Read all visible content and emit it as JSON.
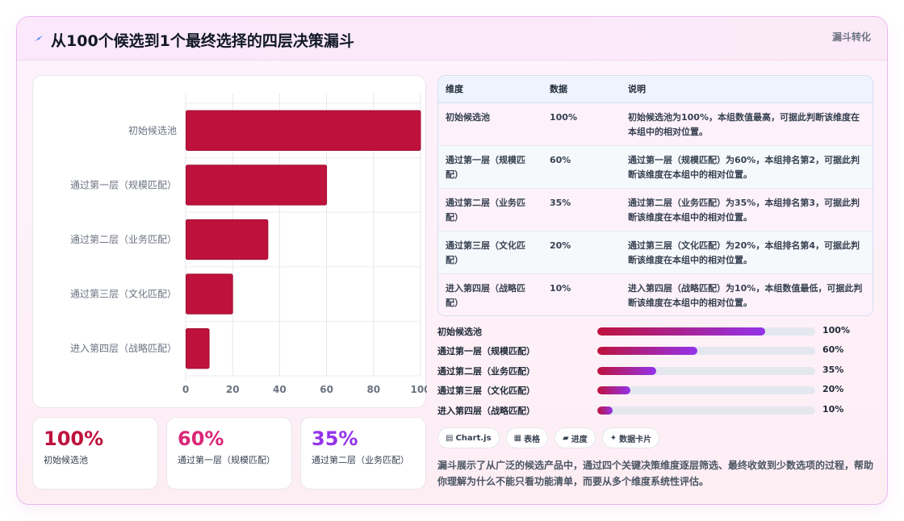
{
  "header": {
    "title": "从100个候选到1个最终选择的四层决策漏斗",
    "tag": "漏斗转化",
    "icon": "lightning-icon"
  },
  "colors": {
    "bar": "#be123c",
    "accent_start": "#be123c",
    "accent_end": "#9333ea"
  },
  "chart_data": {
    "type": "bar",
    "orientation": "horizontal",
    "categories": [
      "初始候选池",
      "通过第一层（规模匹配）",
      "通过第二层（业务匹配）",
      "通过第三层（文化匹配）",
      "进入第四层（战略匹配）"
    ],
    "values": [
      100,
      60,
      35,
      20,
      10
    ],
    "xlim": [
      0,
      100
    ],
    "xticks": [
      "0",
      "20",
      "40",
      "60",
      "80",
      "100"
    ],
    "grid": true,
    "legend": "none"
  },
  "stats": [
    {
      "value": "100%",
      "label": "初始候选池",
      "color": "#be123c"
    },
    {
      "value": "60%",
      "label": "通过第一层（规模匹配）",
      "color": "#db2777"
    },
    {
      "value": "35%",
      "label": "通过第二层（业务匹配）",
      "color": "#9333ea"
    }
  ],
  "table": {
    "headers": [
      "维度",
      "数据",
      "说明"
    ],
    "rows": [
      {
        "dim": "初始候选池",
        "val": "100%",
        "note": "初始候选池为100%，本组数值最高，可据此判断该维度在本组中的相对位置。"
      },
      {
        "dim": "通过第一层（规模匹配）",
        "val": "60%",
        "note": "通过第一层（规模匹配）为60%，本组排名第2，可据此判断该维度在本组中的相对位置。"
      },
      {
        "dim": "通过第二层（业务匹配）",
        "val": "35%",
        "note": "通过第二层（业务匹配）为35%，本组排名第3，可据此判断该维度在本组中的相对位置。"
      },
      {
        "dim": "通过第三层（文化匹配）",
        "val": "20%",
        "note": "通过第三层（文化匹配）为20%，本组排名第4，可据此判断该维度在本组中的相对位置。"
      },
      {
        "dim": "进入第四层（战略匹配）",
        "val": "10%",
        "note": "进入第四层（战略匹配）为10%，本组数值最低，可据此判断该维度在本组中的相对位置。"
      }
    ]
  },
  "progress": [
    {
      "label": "初始候选池",
      "value": "100%",
      "fraction": 0.77
    },
    {
      "label": "通过第一层（规模匹配）",
      "value": "60%",
      "fraction": 0.46
    },
    {
      "label": "通过第二层（业务匹配）",
      "value": "35%",
      "fraction": 0.27
    },
    {
      "label": "通过第三层（文化匹配）",
      "value": "20%",
      "fraction": 0.15
    },
    {
      "label": "进入第四层（战略匹配）",
      "value": "10%",
      "fraction": 0.07
    }
  ],
  "chips": [
    {
      "icon": "chart-icon",
      "glyph": "▤",
      "label": "Chart.js"
    },
    {
      "icon": "table-icon",
      "glyph": "▦",
      "label": "表格"
    },
    {
      "icon": "progress-icon",
      "glyph": "▰",
      "label": "进度"
    },
    {
      "icon": "card-icon",
      "glyph": "✦",
      "label": "数据卡片"
    }
  ],
  "description": "漏斗展示了从广泛的候选产品中，通过四个关键决策维度逐层筛选、最终收敛到少数选项的过程，帮助你理解为什么不能只看功能清单，而要从多个维度系统性评估。"
}
